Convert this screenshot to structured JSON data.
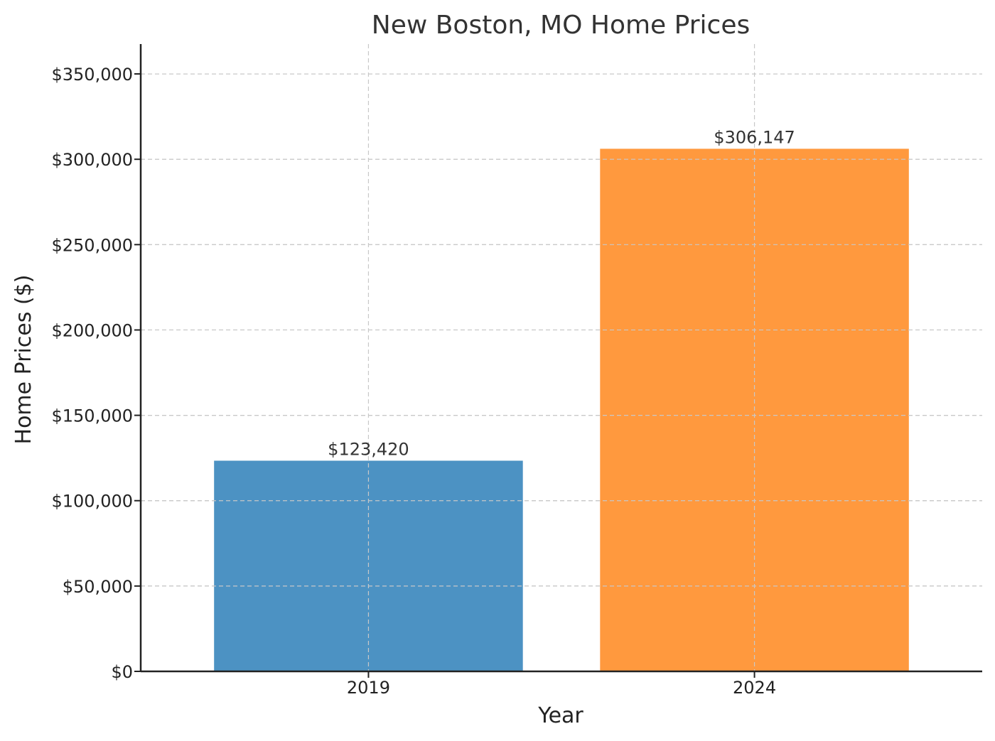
{
  "chart_data": {
    "type": "bar",
    "title": "New Boston, MO Home Prices",
    "xlabel": "Year",
    "ylabel": "Home Prices ($)",
    "categories": [
      "2019",
      "2024"
    ],
    "values": [
      123420,
      306147
    ],
    "data_labels": [
      "$123,420",
      "$306,147"
    ],
    "colors": [
      "#4c92c3",
      "#ff993e"
    ],
    "ylim": [
      0,
      367500
    ],
    "yticks": [
      0,
      50000,
      100000,
      150000,
      200000,
      250000,
      300000,
      350000
    ],
    "ytick_labels": [
      "$0",
      "$50,000",
      "$100,000",
      "$150,000",
      "$200,000",
      "$250,000",
      "$300,000",
      "$350,000"
    ],
    "grid": true,
    "grid_style": "dashed"
  }
}
